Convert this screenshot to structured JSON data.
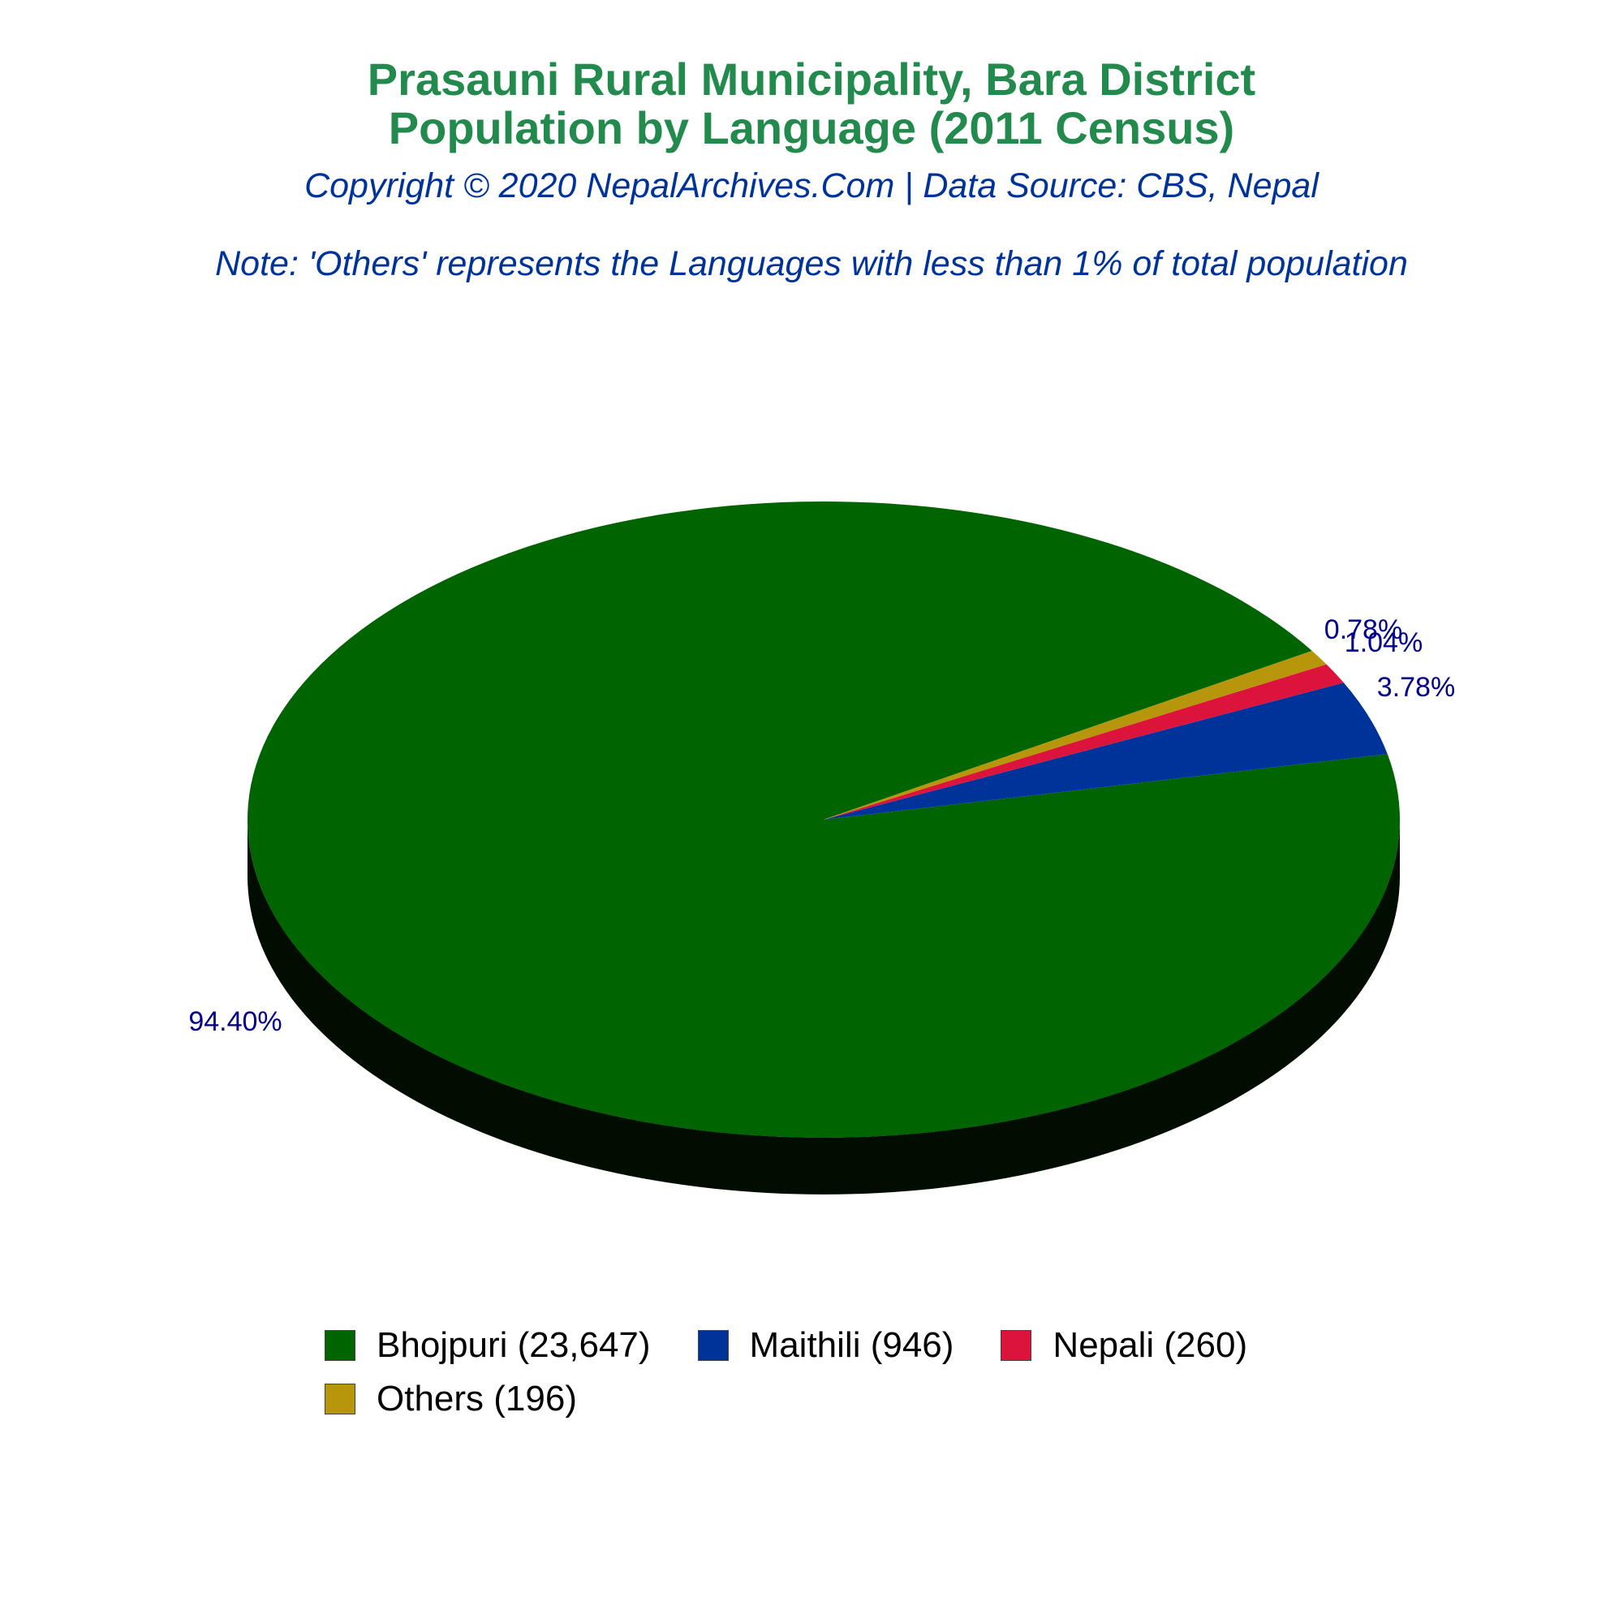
{
  "chart_data": {
    "type": "pie",
    "title": "Prasauni Rural Municipality, Bara District",
    "subtitle": "Population by Language (2011 Census)",
    "copyright": "Copyright © 2020 NepalArchives.Com | Data Source: CBS, Nepal",
    "note": "Note: 'Others' represents the Languages with less than 1% of total population",
    "legend_position": "bottom",
    "slices": [
      {
        "name": "Bhojpuri",
        "value": 23647,
        "percent_label": "94.40%",
        "legend_label": "Bhojpuri (23,647)",
        "color": "#006400"
      },
      {
        "name": "Maithili",
        "value": 946,
        "percent_label": "3.78%",
        "legend_label": "Maithili (946)",
        "color": "#003399"
      },
      {
        "name": "Nepali",
        "value": 260,
        "percent_label": "1.04%",
        "legend_label": "Nepali (260)",
        "color": "#dc143c"
      },
      {
        "name": "Others",
        "value": 196,
        "percent_label": "0.78%",
        "legend_label": "Others (196)",
        "color": "#b8960c"
      }
    ],
    "depth_color": "#000d00"
  }
}
